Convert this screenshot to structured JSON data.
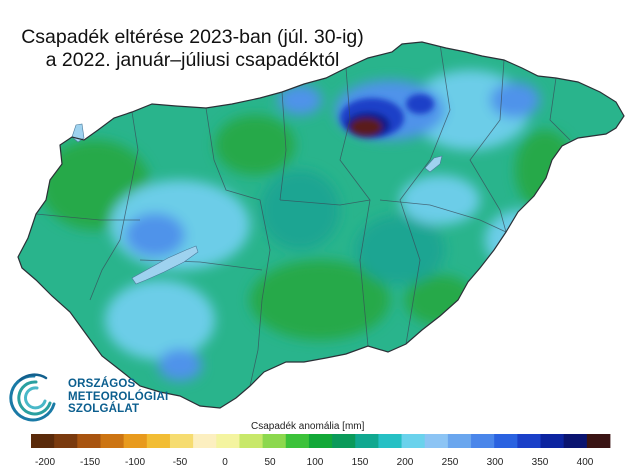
{
  "title": {
    "line1": "Csapadék eltérése 2023-ban (júl. 30-ig)",
    "line2": "a 2022. január–júliusi csapadéktól"
  },
  "logo": {
    "line1": "ORSZÁGOS",
    "line2": "METEOROLÓGIAI",
    "line3": "SZOLGÁLAT"
  },
  "colorbar": {
    "title": "Csapadék anomália [mm]",
    "tick_labels": [
      "-200",
      "-150",
      "-100",
      "-50",
      "0",
      "50",
      "100",
      "150",
      "200",
      "250",
      "300",
      "350",
      "400"
    ],
    "colors": [
      "#5a2a0a",
      "#7a3a0e",
      "#a8540f",
      "#cc7412",
      "#e89a1d",
      "#f2bd34",
      "#f6dc70",
      "#fcefc0",
      "#f4f4a0",
      "#c8e86a",
      "#8cd84e",
      "#3cc23a",
      "#12a838",
      "#0a9a5a",
      "#10a890",
      "#26c0c4",
      "#6ad2ec",
      "#8cc4f4",
      "#6aa6ee",
      "#4a86ea",
      "#2a62e0",
      "#1a40c8",
      "#0c24a0",
      "#0a1470",
      "#3a1414"
    ]
  },
  "map_colors": {
    "base": "#29b48c",
    "green": "#25a94a",
    "teal": "#1aa592",
    "light_blue": "#6ccde8",
    "blue": "#4f93ea",
    "dark_blue": "#1e40c8",
    "navy": "#0c1a8a",
    "max": "#5a1e1e",
    "water": "#9ed2ef"
  }
}
